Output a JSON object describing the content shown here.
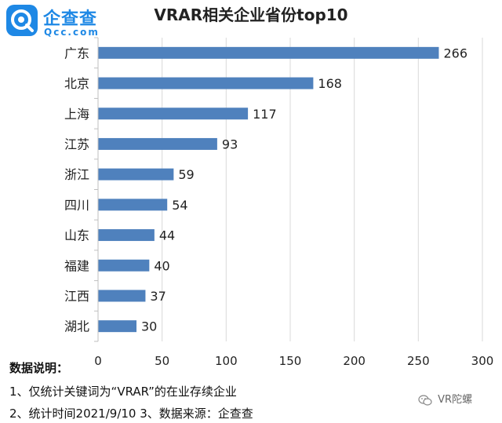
{
  "logo": {
    "name": "企查查",
    "domain": "Qcc.com"
  },
  "chart_data": {
    "type": "bar",
    "orientation": "horizontal",
    "title": "VRAR相关企业省份top10",
    "categories": [
      "广东",
      "北京",
      "上海",
      "江苏",
      "浙江",
      "四川",
      "山东",
      "福建",
      "江西",
      "湖北"
    ],
    "values": [
      266,
      168,
      117,
      93,
      59,
      54,
      44,
      40,
      37,
      30
    ],
    "xlim": [
      0,
      300
    ],
    "xticks": [
      0,
      50,
      100,
      150,
      200,
      250,
      300
    ],
    "xlabel": "",
    "ylabel": "",
    "grid": true,
    "bar_color": "#4f81bd"
  },
  "notes": {
    "title": "数据说明：",
    "line1": "1、仅统计关键词为“VRAR”的在业存续企业",
    "line2": "2、统计时间2021/9/10  3、数据来源：企查查"
  },
  "watermark": {
    "text": "VR陀螺"
  }
}
